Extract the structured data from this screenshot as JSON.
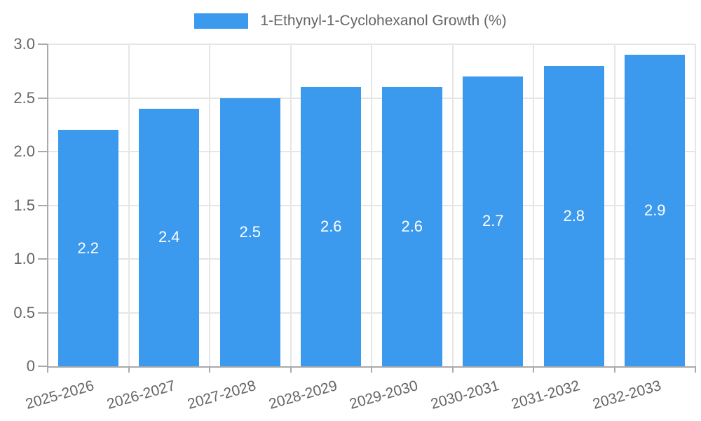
{
  "chart_data": {
    "type": "bar",
    "title": "1-Ethynyl-1-Cyclohexanol Growth (%)",
    "legend_label": "1-Ethynyl-1-Cyclohexanol Growth (%)",
    "legend_position": "top",
    "categories": [
      "2025-2026",
      "2026-2027",
      "2027-2028",
      "2028-2029",
      "2029-2030",
      "2030-2031",
      "2031-2032",
      "2032-2033"
    ],
    "values": [
      2.2,
      2.4,
      2.5,
      2.6,
      2.6,
      2.7,
      2.8,
      2.9
    ],
    "bar_value_labels": [
      "2.2",
      "2.4",
      "2.5",
      "2.6",
      "2.6",
      "2.7",
      "2.8",
      "2.9"
    ],
    "xlabel": "",
    "ylabel": "",
    "ylim": [
      0,
      3
    ],
    "yticks": [
      0,
      0.5,
      1,
      1.5,
      2,
      2.5,
      3
    ],
    "ytick_labels": [
      "0",
      "0.5",
      "1.0",
      "1.5",
      "2.0",
      "2.5",
      "3.0"
    ],
    "grid": true,
    "colors": {
      "bar": "#3B99EE",
      "grid": "#E6E6E6",
      "axis": "#AAAAAA",
      "tick_text": "#666666",
      "value_label_text": "#FFFFFF",
      "background": "#FFFFFF"
    }
  }
}
